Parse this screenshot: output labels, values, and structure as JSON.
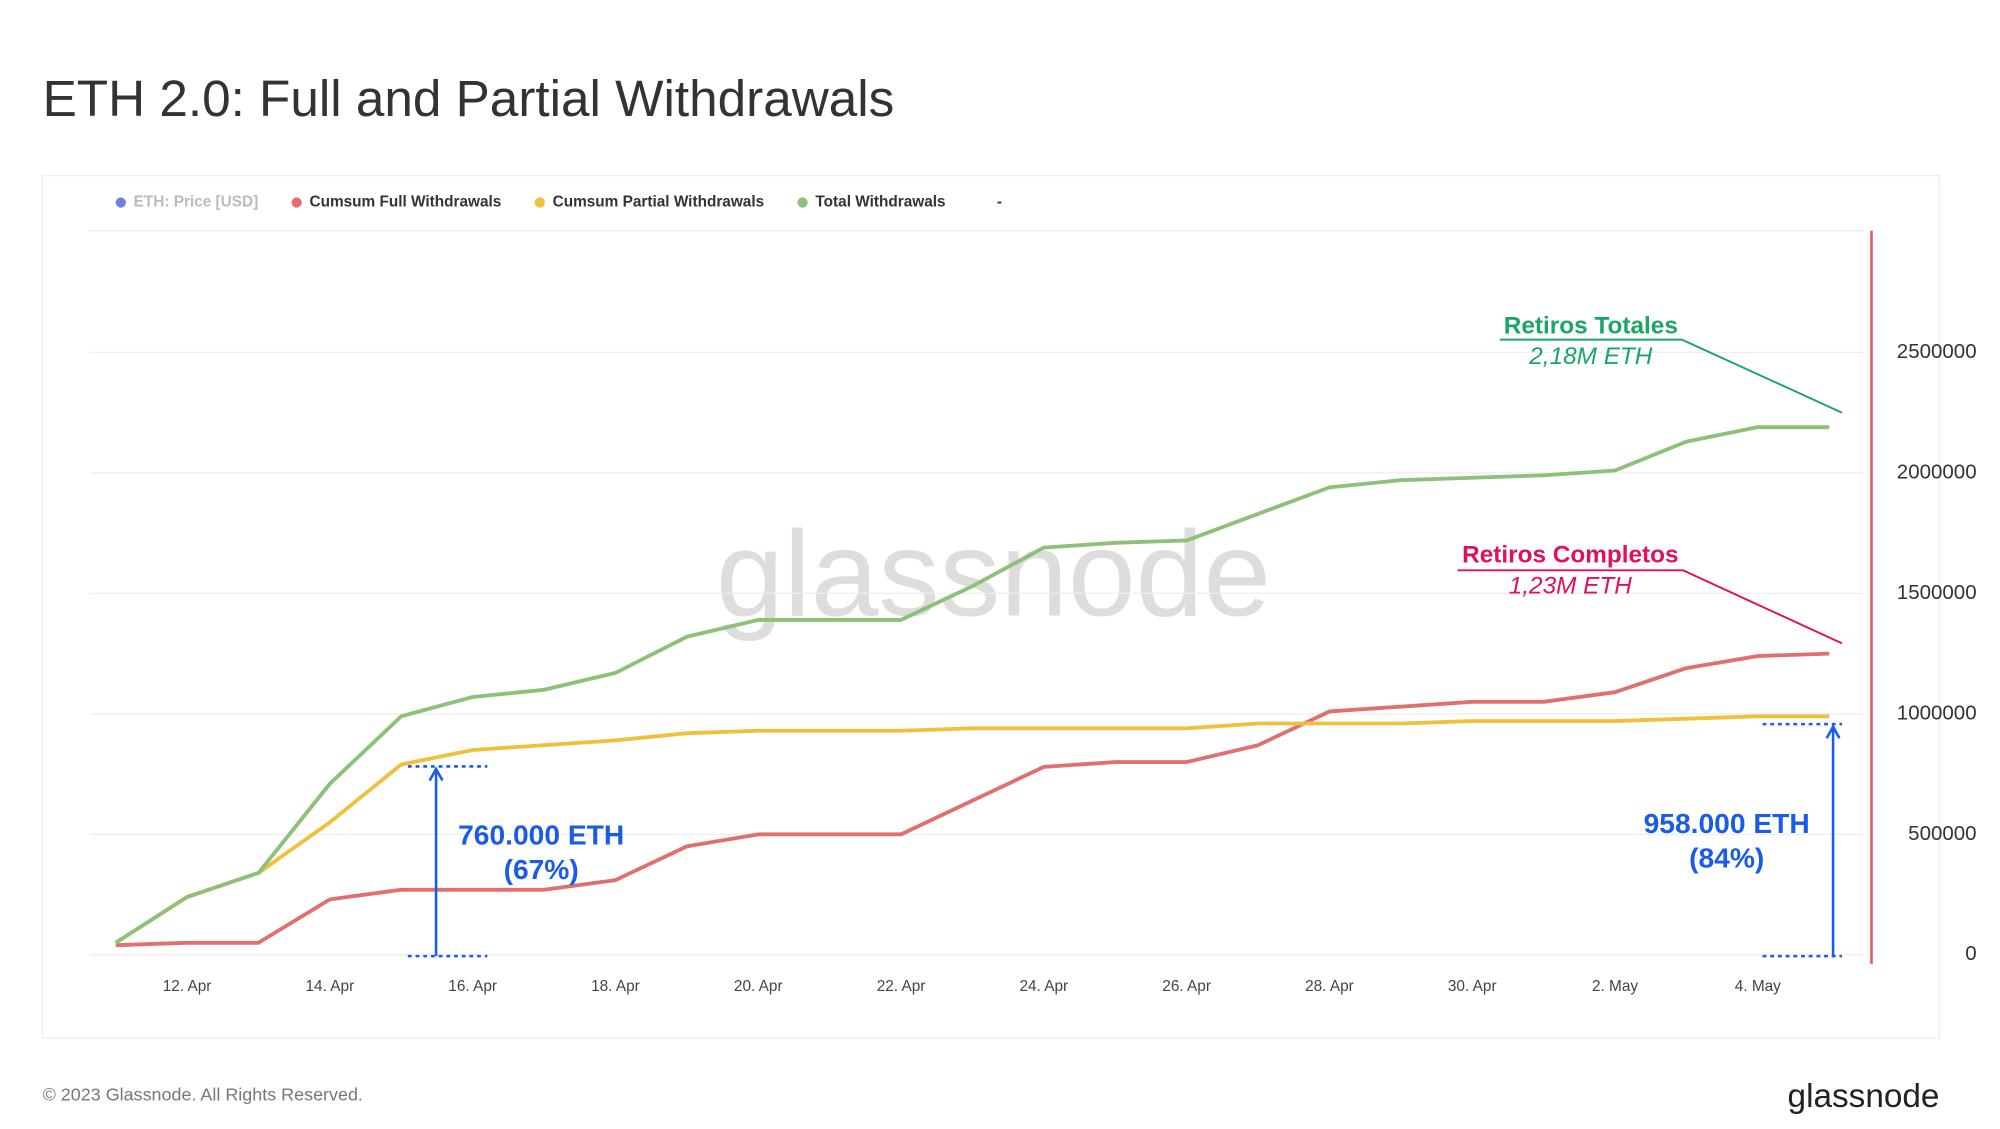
{
  "chart_data": {
    "type": "line",
    "title": "ETH 2.0: Full and Partial Withdrawals",
    "categories": [
      null,
      "12. Apr",
      null,
      "14. Apr",
      null,
      "16. Apr",
      null,
      "18. Apr",
      null,
      "20. Apr",
      null,
      "22. Apr",
      null,
      "24. Apr",
      null,
      "26. Apr",
      null,
      "28. Apr",
      null,
      "30. Apr",
      null,
      "2. May",
      null,
      "4. May",
      null
    ],
    "series": [
      {
        "name": "Cumsum Full Withdrawals",
        "color": "#e07070",
        "values": [
          40000,
          50000,
          50000,
          230000,
          270000,
          270000,
          270000,
          310000,
          450000,
          500000,
          500000,
          500000,
          640000,
          780000,
          800000,
          800000,
          870000,
          1010000,
          1030000,
          1050000,
          1050000,
          1090000,
          1190000,
          1240000,
          1250000
        ]
      },
      {
        "name": "Cumsum Partial Withdrawals",
        "color": "#f0c03c",
        "values": [
          50000,
          240000,
          340000,
          550000,
          790000,
          850000,
          870000,
          890000,
          920000,
          930000,
          930000,
          930000,
          940000,
          940000,
          940000,
          940000,
          960000,
          960000,
          960000,
          970000,
          970000,
          970000,
          980000,
          990000,
          990000
        ]
      },
      {
        "name": "Total Withdrawals",
        "color": "#8fc07a",
        "values": [
          50000,
          240000,
          340000,
          710000,
          990000,
          1070000,
          1100000,
          1170000,
          1320000,
          1390000,
          1390000,
          1390000,
          1530000,
          1690000,
          1710000,
          1720000,
          1830000,
          1940000,
          1970000,
          1980000,
          1990000,
          2010000,
          2130000,
          2190000,
          2190000
        ]
      }
    ],
    "legend_extra": [
      {
        "name": "ETH: Price [USD]",
        "color": "#6f80e0"
      },
      {
        "name": "-"
      }
    ],
    "ylim": [
      0,
      2900000
    ],
    "yticks": [
      0,
      500000,
      1000000,
      1500000,
      2000000,
      2500000
    ],
    "grid": true,
    "axis_color": "#e05a5a",
    "annotations": [
      {
        "title": "Retiros Totales",
        "text": "2,18M ETH",
        "color": "#1aa765"
      },
      {
        "title": "Retiros Completos",
        "text": "1,23M ETH",
        "color": "#e0105a"
      },
      {
        "title": "760.000 ETH",
        "text": "(67%)",
        "color": "#1a5be8"
      },
      {
        "title": "958.000 ETH",
        "text": "(84%)",
        "color": "#1a5be8"
      }
    ],
    "watermark": "glassnode",
    "footer": "© 2023 Glassnode. All Rights Reserved.",
    "logo": "glassnode"
  }
}
